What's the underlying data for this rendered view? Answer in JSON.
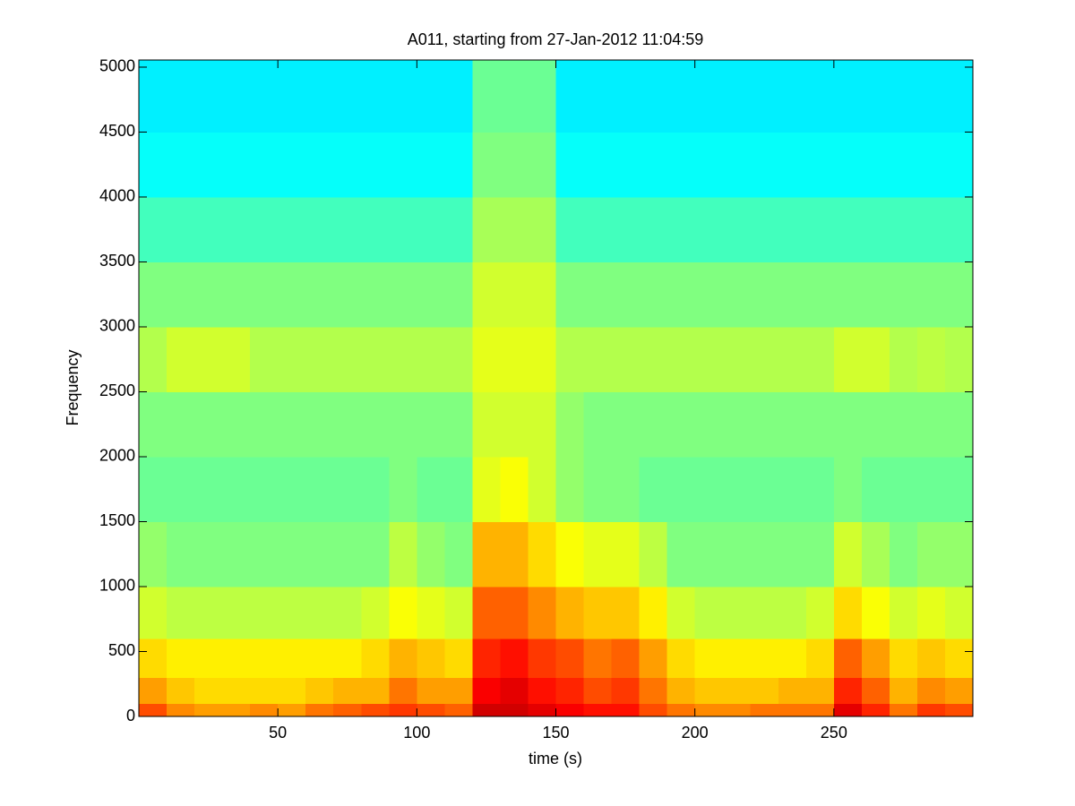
{
  "chart_data": {
    "type": "heatmap",
    "title": "A011, starting from 27-Jan-2012 11:04:59",
    "x_label": "time (s)",
    "y_label": "Frequency",
    "colormap": "jet",
    "clim": [
      0,
      1
    ],
    "xlim": [
      0,
      300
    ],
    "ylim": [
      0,
      5055
    ],
    "xticks": [
      50,
      100,
      150,
      200,
      250
    ],
    "yticks": [
      0,
      500,
      1000,
      1500,
      2000,
      2500,
      3000,
      3500,
      4000,
      4500,
      5000
    ],
    "x_bins": [
      0,
      10,
      20,
      30,
      40,
      50,
      60,
      70,
      80,
      90,
      100,
      110,
      120,
      130,
      140,
      150,
      160,
      170,
      180,
      190,
      200,
      210,
      220,
      230,
      240,
      250,
      260,
      270,
      280,
      290,
      300
    ],
    "y_bins": [
      0,
      100,
      300,
      600,
      1000,
      1500,
      2000,
      2500,
      3000,
      3500,
      4000,
      4500,
      5055
    ],
    "z": [
      [
        0.8,
        0.74,
        0.72,
        0.72,
        0.74,
        0.72,
        0.76,
        0.78,
        0.8,
        0.82,
        0.8,
        0.78,
        0.92,
        0.92,
        0.9,
        0.88,
        0.86,
        0.86,
        0.8,
        0.76,
        0.74,
        0.74,
        0.76,
        0.76,
        0.76,
        0.9,
        0.84,
        0.76,
        0.82,
        0.8
      ],
      [
        0.72,
        0.68,
        0.66,
        0.66,
        0.66,
        0.66,
        0.68,
        0.7,
        0.7,
        0.76,
        0.72,
        0.72,
        0.88,
        0.9,
        0.86,
        0.84,
        0.8,
        0.82,
        0.76,
        0.7,
        0.68,
        0.68,
        0.68,
        0.7,
        0.7,
        0.84,
        0.78,
        0.7,
        0.74,
        0.72
      ],
      [
        0.66,
        0.64,
        0.64,
        0.64,
        0.64,
        0.64,
        0.64,
        0.64,
        0.66,
        0.7,
        0.68,
        0.66,
        0.84,
        0.86,
        0.82,
        0.8,
        0.76,
        0.78,
        0.72,
        0.66,
        0.64,
        0.64,
        0.64,
        0.64,
        0.66,
        0.78,
        0.72,
        0.66,
        0.68,
        0.66
      ],
      [
        0.58,
        0.56,
        0.56,
        0.56,
        0.56,
        0.56,
        0.56,
        0.56,
        0.58,
        0.62,
        0.6,
        0.58,
        0.78,
        0.78,
        0.74,
        0.7,
        0.68,
        0.68,
        0.64,
        0.58,
        0.56,
        0.56,
        0.56,
        0.56,
        0.58,
        0.66,
        0.62,
        0.58,
        0.6,
        0.58
      ],
      [
        0.52,
        0.5,
        0.5,
        0.5,
        0.5,
        0.5,
        0.5,
        0.5,
        0.5,
        0.56,
        0.52,
        0.5,
        0.7,
        0.7,
        0.66,
        0.62,
        0.6,
        0.6,
        0.56,
        0.5,
        0.5,
        0.5,
        0.5,
        0.5,
        0.5,
        0.58,
        0.54,
        0.5,
        0.52,
        0.52
      ],
      [
        0.48,
        0.48,
        0.48,
        0.48,
        0.48,
        0.48,
        0.48,
        0.48,
        0.48,
        0.5,
        0.48,
        0.48,
        0.6,
        0.62,
        0.58,
        0.52,
        0.5,
        0.5,
        0.48,
        0.48,
        0.48,
        0.48,
        0.48,
        0.48,
        0.48,
        0.5,
        0.48,
        0.48,
        0.48,
        0.48
      ],
      [
        0.5,
        0.5,
        0.5,
        0.5,
        0.5,
        0.5,
        0.5,
        0.5,
        0.5,
        0.5,
        0.5,
        0.5,
        0.58,
        0.58,
        0.58,
        0.52,
        0.5,
        0.5,
        0.5,
        0.5,
        0.5,
        0.5,
        0.5,
        0.5,
        0.5,
        0.5,
        0.5,
        0.5,
        0.5,
        0.5
      ],
      [
        0.55,
        0.58,
        0.58,
        0.58,
        0.55,
        0.55,
        0.55,
        0.55,
        0.55,
        0.55,
        0.55,
        0.55,
        0.6,
        0.6,
        0.6,
        0.55,
        0.55,
        0.55,
        0.55,
        0.55,
        0.55,
        0.55,
        0.55,
        0.55,
        0.55,
        0.58,
        0.58,
        0.55,
        0.56,
        0.55
      ],
      [
        0.5,
        0.5,
        0.5,
        0.5,
        0.5,
        0.5,
        0.5,
        0.5,
        0.5,
        0.5,
        0.5,
        0.5,
        0.58,
        0.58,
        0.58,
        0.5,
        0.5,
        0.5,
        0.5,
        0.5,
        0.5,
        0.5,
        0.5,
        0.5,
        0.5,
        0.5,
        0.5,
        0.5,
        0.5,
        0.5
      ],
      [
        0.44,
        0.44,
        0.44,
        0.44,
        0.44,
        0.44,
        0.44,
        0.44,
        0.44,
        0.44,
        0.44,
        0.44,
        0.54,
        0.54,
        0.54,
        0.44,
        0.44,
        0.44,
        0.44,
        0.44,
        0.44,
        0.44,
        0.44,
        0.44,
        0.44,
        0.44,
        0.44,
        0.44,
        0.44,
        0.44
      ],
      [
        0.38,
        0.38,
        0.38,
        0.38,
        0.38,
        0.38,
        0.38,
        0.38,
        0.38,
        0.38,
        0.38,
        0.38,
        0.5,
        0.5,
        0.5,
        0.38,
        0.38,
        0.38,
        0.38,
        0.38,
        0.38,
        0.38,
        0.38,
        0.38,
        0.38,
        0.38,
        0.38,
        0.38,
        0.38,
        0.38
      ],
      [
        0.36,
        0.36,
        0.36,
        0.36,
        0.36,
        0.36,
        0.36,
        0.36,
        0.36,
        0.36,
        0.36,
        0.36,
        0.48,
        0.48,
        0.48,
        0.36,
        0.36,
        0.36,
        0.36,
        0.36,
        0.36,
        0.36,
        0.36,
        0.36,
        0.36,
        0.36,
        0.36,
        0.36,
        0.36,
        0.36
      ]
    ]
  }
}
